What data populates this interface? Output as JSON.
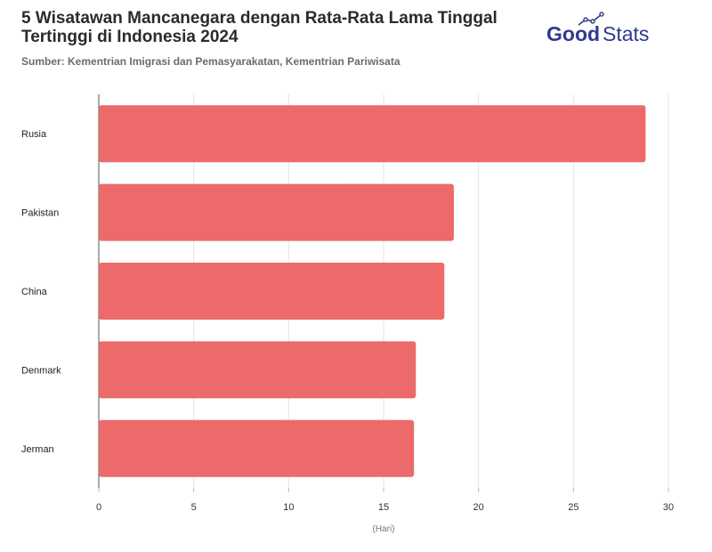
{
  "header": {
    "title": "5 Wisatawan Mancanegara dengan Rata-Rata Lama Tinggal Tertinggi di Indonesia 2024",
    "subtitle": "Sumber: Kementrian Imigrasi dan Pemasyarakatan, Kementrian Pariwisata",
    "logo_text": "GoodStats"
  },
  "chart_data": {
    "type": "bar",
    "orientation": "horizontal",
    "categories": [
      "Rusia",
      "Pakistan",
      "China",
      "Denmark",
      "Jerman"
    ],
    "values": [
      28.8,
      18.7,
      18.2,
      16.7,
      16.6
    ],
    "xlabel": "(Hari)",
    "ylabel": "",
    "xlim": [
      0,
      30
    ],
    "xticks": [
      "0",
      "5",
      "10",
      "15",
      "20",
      "25",
      "30"
    ],
    "grid": true,
    "bar_color": "#ec6a6a"
  }
}
